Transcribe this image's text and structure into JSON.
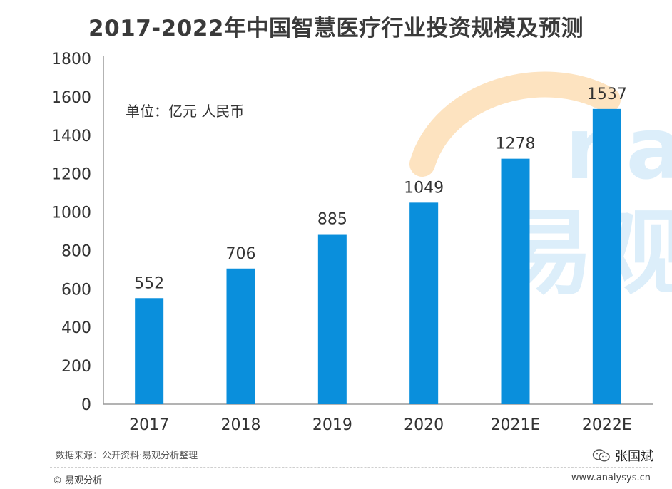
{
  "chart_data": {
    "type": "bar",
    "title": "2017-2022年中国智慧医疗行业投资规模及预测",
    "unit_label": "单位：亿元 人民币",
    "categories": [
      "2017",
      "2018",
      "2019",
      "2020",
      "2021E",
      "2022E"
    ],
    "values": [
      552,
      706,
      885,
      1049,
      1278,
      1537
    ],
    "yticks": [
      0,
      200,
      400,
      600,
      800,
      1000,
      1200,
      1400,
      1600,
      1800
    ],
    "ylim": [
      0,
      1800
    ],
    "bar_color": "#0a8fdc",
    "grid": false,
    "legend": "none"
  },
  "footer": {
    "source": "数据来源：公开资料·易观分析整理",
    "copyright": "© 易观分析",
    "website": "www.analysys.cn",
    "wechat_account": "张国斌",
    "wechat_icon": "wechat-icon"
  },
  "watermark": {
    "text": "易观",
    "latin": "na",
    "arc_color": "#fde3c0",
    "text_color": "#dceefa"
  }
}
